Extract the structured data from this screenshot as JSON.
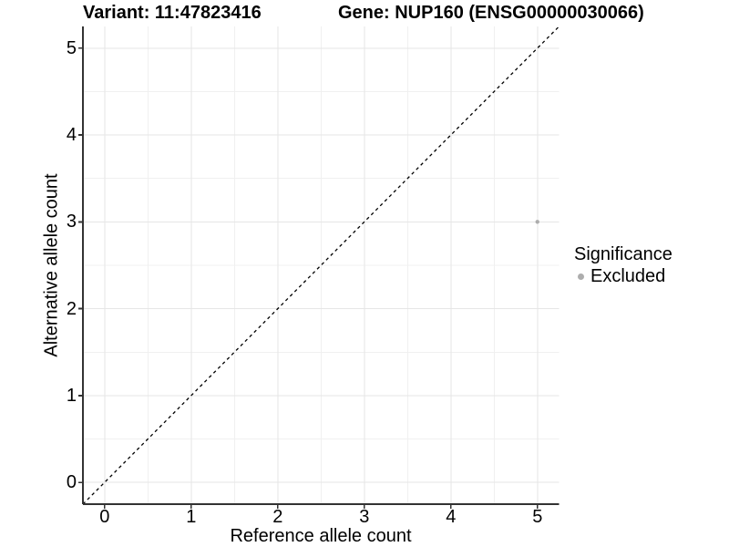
{
  "header": {
    "title_left": "Variant: 11:47823416",
    "title_right": "Gene: NUP160 (ENSG00000030066)"
  },
  "chart_data": {
    "type": "scatter",
    "xlabel": "Reference allele count",
    "ylabel": "Alternative allele count",
    "xlim": [
      -0.25,
      5.25
    ],
    "ylim": [
      -0.25,
      5.25
    ],
    "xticks": [
      0,
      1,
      2,
      3,
      4,
      5
    ],
    "yticks": [
      0,
      1,
      2,
      3,
      4,
      5
    ],
    "minor_xticks": [
      0.5,
      1.5,
      2.5,
      3.5,
      4.5
    ],
    "minor_yticks": [
      0.5,
      1.5,
      2.5,
      3.5,
      4.5
    ],
    "grid": "major+minor",
    "series": [
      {
        "name": "Excluded",
        "color": "#adadad",
        "points": [
          {
            "x": 5,
            "y": 3
          }
        ]
      }
    ],
    "reference_line": {
      "slope": 1,
      "intercept": 0,
      "linetype": "dashed",
      "color": "#000000"
    },
    "legend": {
      "title": "Significance",
      "position": "right",
      "items": [
        {
          "label": "Excluded",
          "color": "#adadad"
        }
      ]
    }
  },
  "colors": {
    "background": "#ffffff",
    "grid_major": "#e6e6e6",
    "grid_minor": "#f0f0f0",
    "axis_line": "#333333",
    "text": "#000000",
    "point_excluded": "#adadad"
  }
}
